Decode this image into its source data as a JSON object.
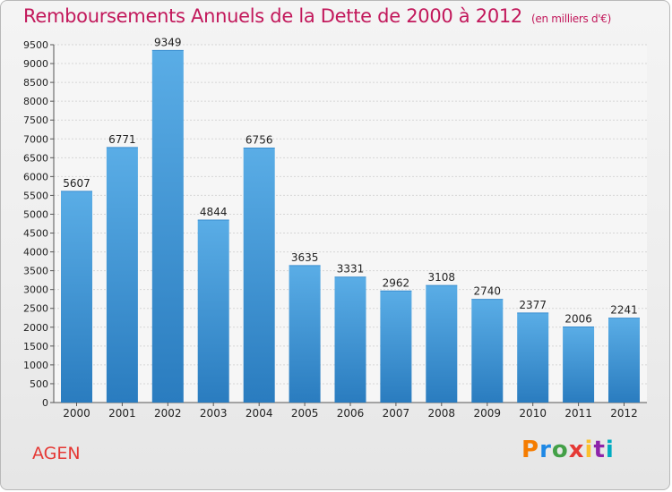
{
  "header": {
    "title": "Remboursements Annuels de la Dette de 2000 à 2012",
    "subtitle": "(en milliers d'€)"
  },
  "footer": {
    "city": "AGEN",
    "logo": {
      "name": "proxiti-logo",
      "letters": [
        "P",
        "r",
        "o",
        "x",
        "i",
        "t",
        "i"
      ],
      "colors": [
        "#f57c00",
        "#1e88e5",
        "#43a047",
        "#e53935",
        "#fbc02d",
        "#8e24aa",
        "#00acc1"
      ]
    }
  },
  "chart_data": {
    "type": "bar",
    "title": "Remboursements Annuels de la Dette de 2000 à 2012",
    "subtitle": "(en milliers d'€)",
    "categories": [
      "2000",
      "2001",
      "2002",
      "2003",
      "2004",
      "2005",
      "2006",
      "2007",
      "2008",
      "2009",
      "2010",
      "2011",
      "2012"
    ],
    "values": [
      5607,
      6771,
      9349,
      4844,
      6756,
      3635,
      3331,
      2962,
      3108,
      2740,
      2377,
      2006,
      2241
    ],
    "ylim": [
      0,
      9500
    ],
    "yticks": [
      0,
      500,
      1000,
      1500,
      2000,
      2500,
      3000,
      3500,
      4000,
      4500,
      5000,
      5500,
      6000,
      6500,
      7000,
      7500,
      8000,
      8500,
      9000,
      9500
    ],
    "grid": true,
    "bar_color_top": "#5aade6",
    "bar_color_bottom": "#2a7cbf"
  }
}
